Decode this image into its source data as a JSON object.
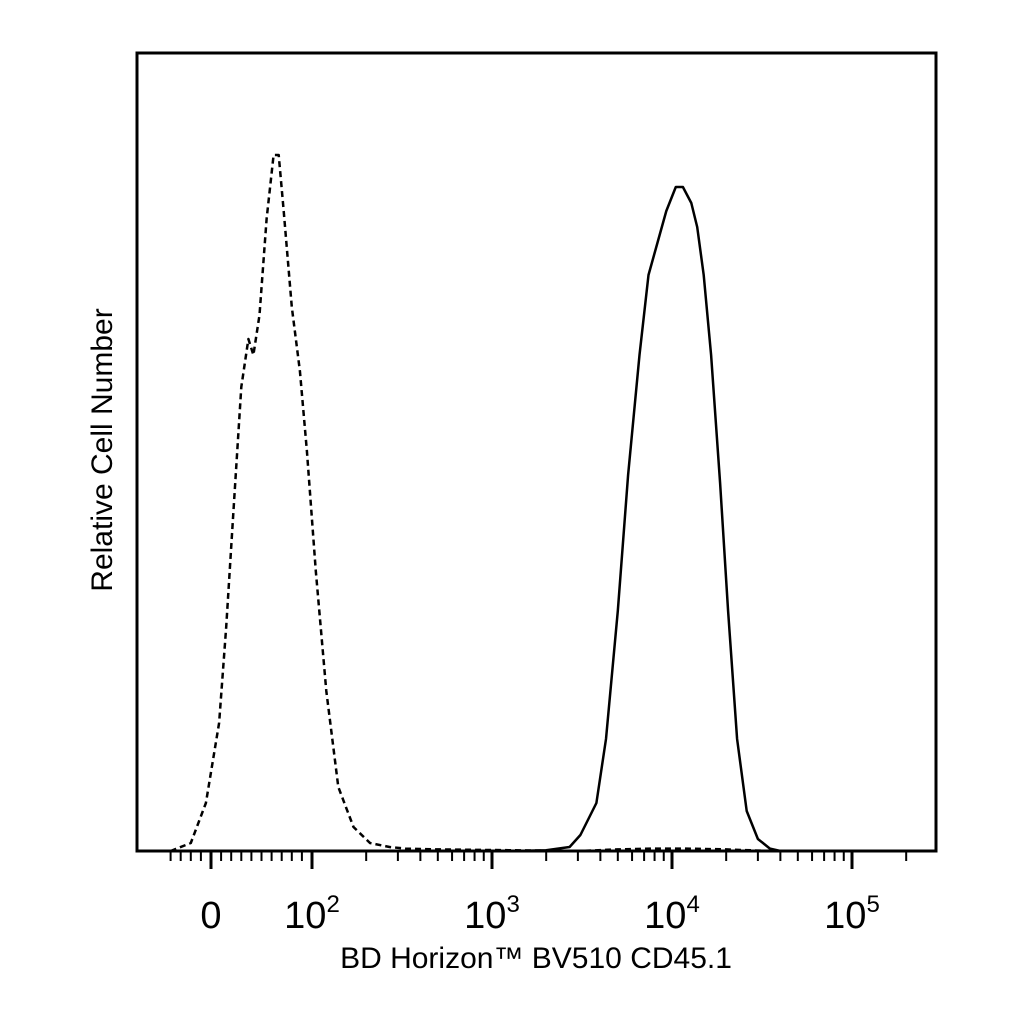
{
  "chart_data": {
    "type": "line",
    "title": "",
    "xlabel": "BD Horizon™ BV510 CD45.1",
    "ylabel": "Relative Cell Number",
    "x_scale": "biexponential",
    "xlim": [
      -40,
      250000
    ],
    "ylim": [
      0,
      1
    ],
    "grid": false,
    "legend": "none",
    "x_tick_labels": [
      {
        "value": 0,
        "base": "0",
        "exp": ""
      },
      {
        "value": 100,
        "base": "10",
        "exp": "2"
      },
      {
        "value": 1000,
        "base": "10",
        "exp": "3"
      },
      {
        "value": 10000,
        "base": "10",
        "exp": "4"
      },
      {
        "value": 100000,
        "base": "10",
        "exp": "5"
      }
    ],
    "series": [
      {
        "line_style": "dashed",
        "color": "#000000",
        "points": [
          [
            -40,
            0
          ],
          [
            -20,
            0.01
          ],
          [
            -5,
            0.06
          ],
          [
            8,
            0.16
          ],
          [
            15,
            0.28
          ],
          [
            22,
            0.42
          ],
          [
            30,
            0.58
          ],
          [
            37,
            0.64
          ],
          [
            42,
            0.62
          ],
          [
            48,
            0.67
          ],
          [
            55,
            0.79
          ],
          [
            62,
            0.87
          ],
          [
            67,
            0.87
          ],
          [
            72,
            0.8
          ],
          [
            80,
            0.68
          ],
          [
            88,
            0.6
          ],
          [
            95,
            0.5
          ],
          [
            105,
            0.35
          ],
          [
            120,
            0.2
          ],
          [
            140,
            0.08
          ],
          [
            170,
            0.03
          ],
          [
            210,
            0.01
          ],
          [
            270,
            0.005
          ],
          [
            330,
            0.003
          ],
          [
            500,
            0.002
          ],
          [
            3000,
            0.0
          ],
          [
            5000,
            0.002
          ],
          [
            8000,
            0.003
          ],
          [
            12000,
            0.003
          ],
          [
            20000,
            0.002
          ],
          [
            35000,
            0.0
          ]
        ]
      },
      {
        "line_style": "solid",
        "color": "#000000",
        "points": [
          [
            1300,
            0
          ],
          [
            2000,
            0.001
          ],
          [
            2700,
            0.005
          ],
          [
            3100,
            0.02
          ],
          [
            3800,
            0.06
          ],
          [
            4300,
            0.14
          ],
          [
            5000,
            0.3
          ],
          [
            5700,
            0.47
          ],
          [
            6600,
            0.62
          ],
          [
            7400,
            0.72
          ],
          [
            8300,
            0.76
          ],
          [
            9300,
            0.8
          ],
          [
            10500,
            0.83
          ],
          [
            11500,
            0.83
          ],
          [
            12800,
            0.81
          ],
          [
            13800,
            0.78
          ],
          [
            15000,
            0.72
          ],
          [
            16500,
            0.62
          ],
          [
            18500,
            0.46
          ],
          [
            20500,
            0.3
          ],
          [
            23000,
            0.14
          ],
          [
            26000,
            0.05
          ],
          [
            30000,
            0.015
          ],
          [
            35000,
            0.003
          ],
          [
            40000,
            0
          ]
        ]
      }
    ]
  }
}
